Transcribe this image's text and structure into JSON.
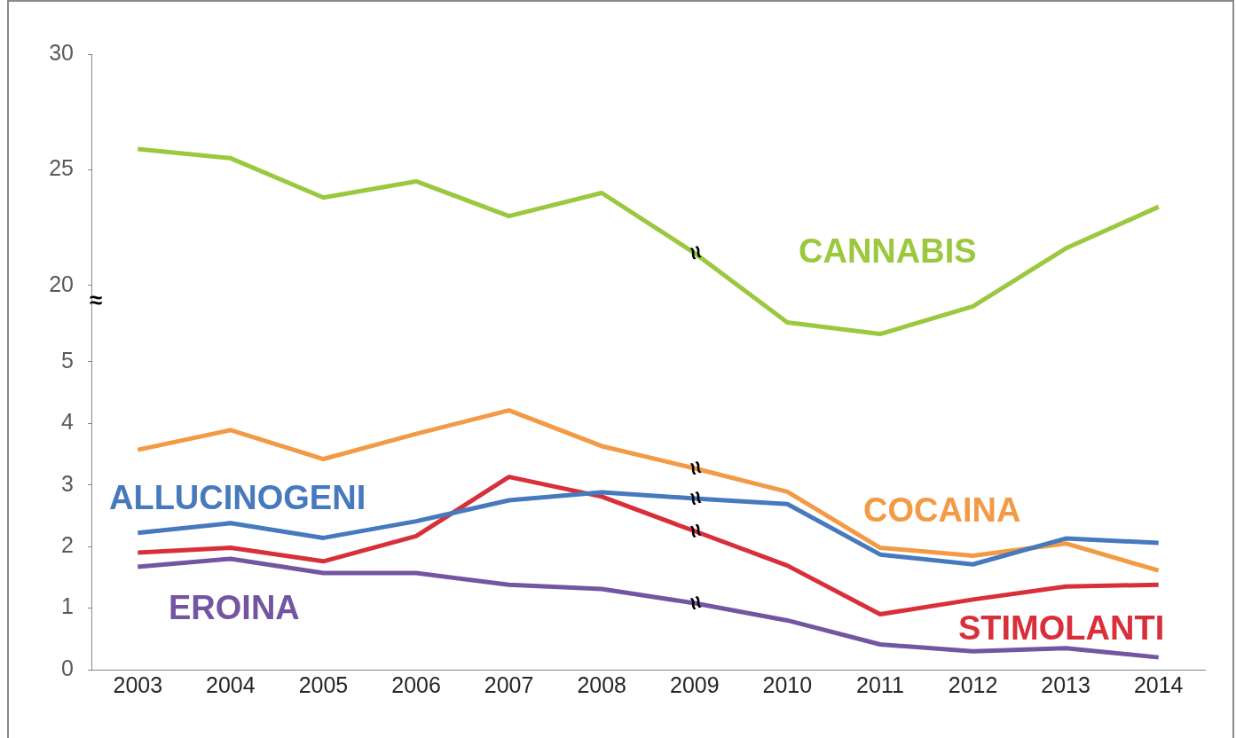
{
  "chart_data": [
    {
      "type": "line",
      "categories": [
        "2003",
        "2004",
        "2005",
        "2006",
        "2007",
        "2008",
        "2009",
        "2010",
        "2011",
        "2012",
        "2013",
        "2014"
      ],
      "series": [
        {
          "name": "CANNABIS",
          "color": "#9bc83e",
          "values": [
            25.9,
            25.5,
            23.8,
            24.5,
            23.0,
            24.0,
            21.4,
            18.4,
            17.9,
            19.1,
            21.6,
            23.4
          ]
        }
      ],
      "ylim": [
        17.5,
        30
      ],
      "yticks": [
        20,
        25,
        30
      ],
      "tick_labels": "y",
      "annotations": [
        "≈",
        {
          "text": "≈",
          "x": "2009",
          "y": 21.4
        }
      ]
    },
    {
      "type": "line",
      "categories": [
        "2003",
        "2004",
        "2005",
        "2006",
        "2007",
        "2008",
        "2009",
        "2010",
        "2011",
        "2012",
        "2013",
        "2014"
      ],
      "series": [
        {
          "name": "ALLUCINOGENI",
          "color": "#4679bd",
          "values": [
            2.22,
            2.38,
            2.14,
            2.41,
            2.75,
            2.88,
            2.78,
            2.69,
            1.87,
            1.71,
            2.13,
            2.06
          ]
        },
        {
          "name": "COCAINA",
          "color": "#f39a45",
          "values": [
            3.57,
            3.89,
            3.42,
            3.83,
            4.21,
            3.63,
            3.27,
            2.89,
            1.98,
            1.85,
            2.05,
            1.61
          ]
        },
        {
          "name": "STIMOLANTI",
          "color": "#d8303a",
          "values": [
            1.9,
            1.98,
            1.76,
            2.17,
            3.13,
            2.81,
            2.25,
            1.69,
            0.9,
            1.14,
            1.35,
            1.38
          ]
        },
        {
          "name": "EROINA",
          "color": "#7455a1",
          "values": [
            1.67,
            1.8,
            1.57,
            1.57,
            1.38,
            1.31,
            1.08,
            0.8,
            0.41,
            0.3,
            0.35,
            0.2
          ]
        }
      ],
      "ylim": [
        0,
        5.3
      ],
      "yticks": [
        0,
        1,
        2,
        3,
        4,
        5
      ],
      "annotations": [
        {
          "text": "≈",
          "x": "2009",
          "y": 3.27
        },
        {
          "text": "≈",
          "x": "2009",
          "y": 2.78
        },
        {
          "text": "≈",
          "x": "2009",
          "y": 2.25
        },
        {
          "text": "≈",
          "x": "2009",
          "y": 1.08
        }
      ]
    }
  ]
}
